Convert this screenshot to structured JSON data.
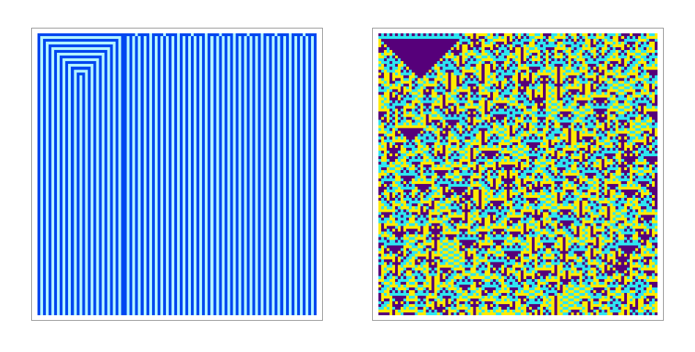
{
  "panels": [
    {
      "colors": [
        "#0047f0",
        "#b4f4ff"
      ]
    },
    {
      "colors": [
        "#56007a",
        "#2ee6f0",
        "#ffec00"
      ]
    }
  ]
}
